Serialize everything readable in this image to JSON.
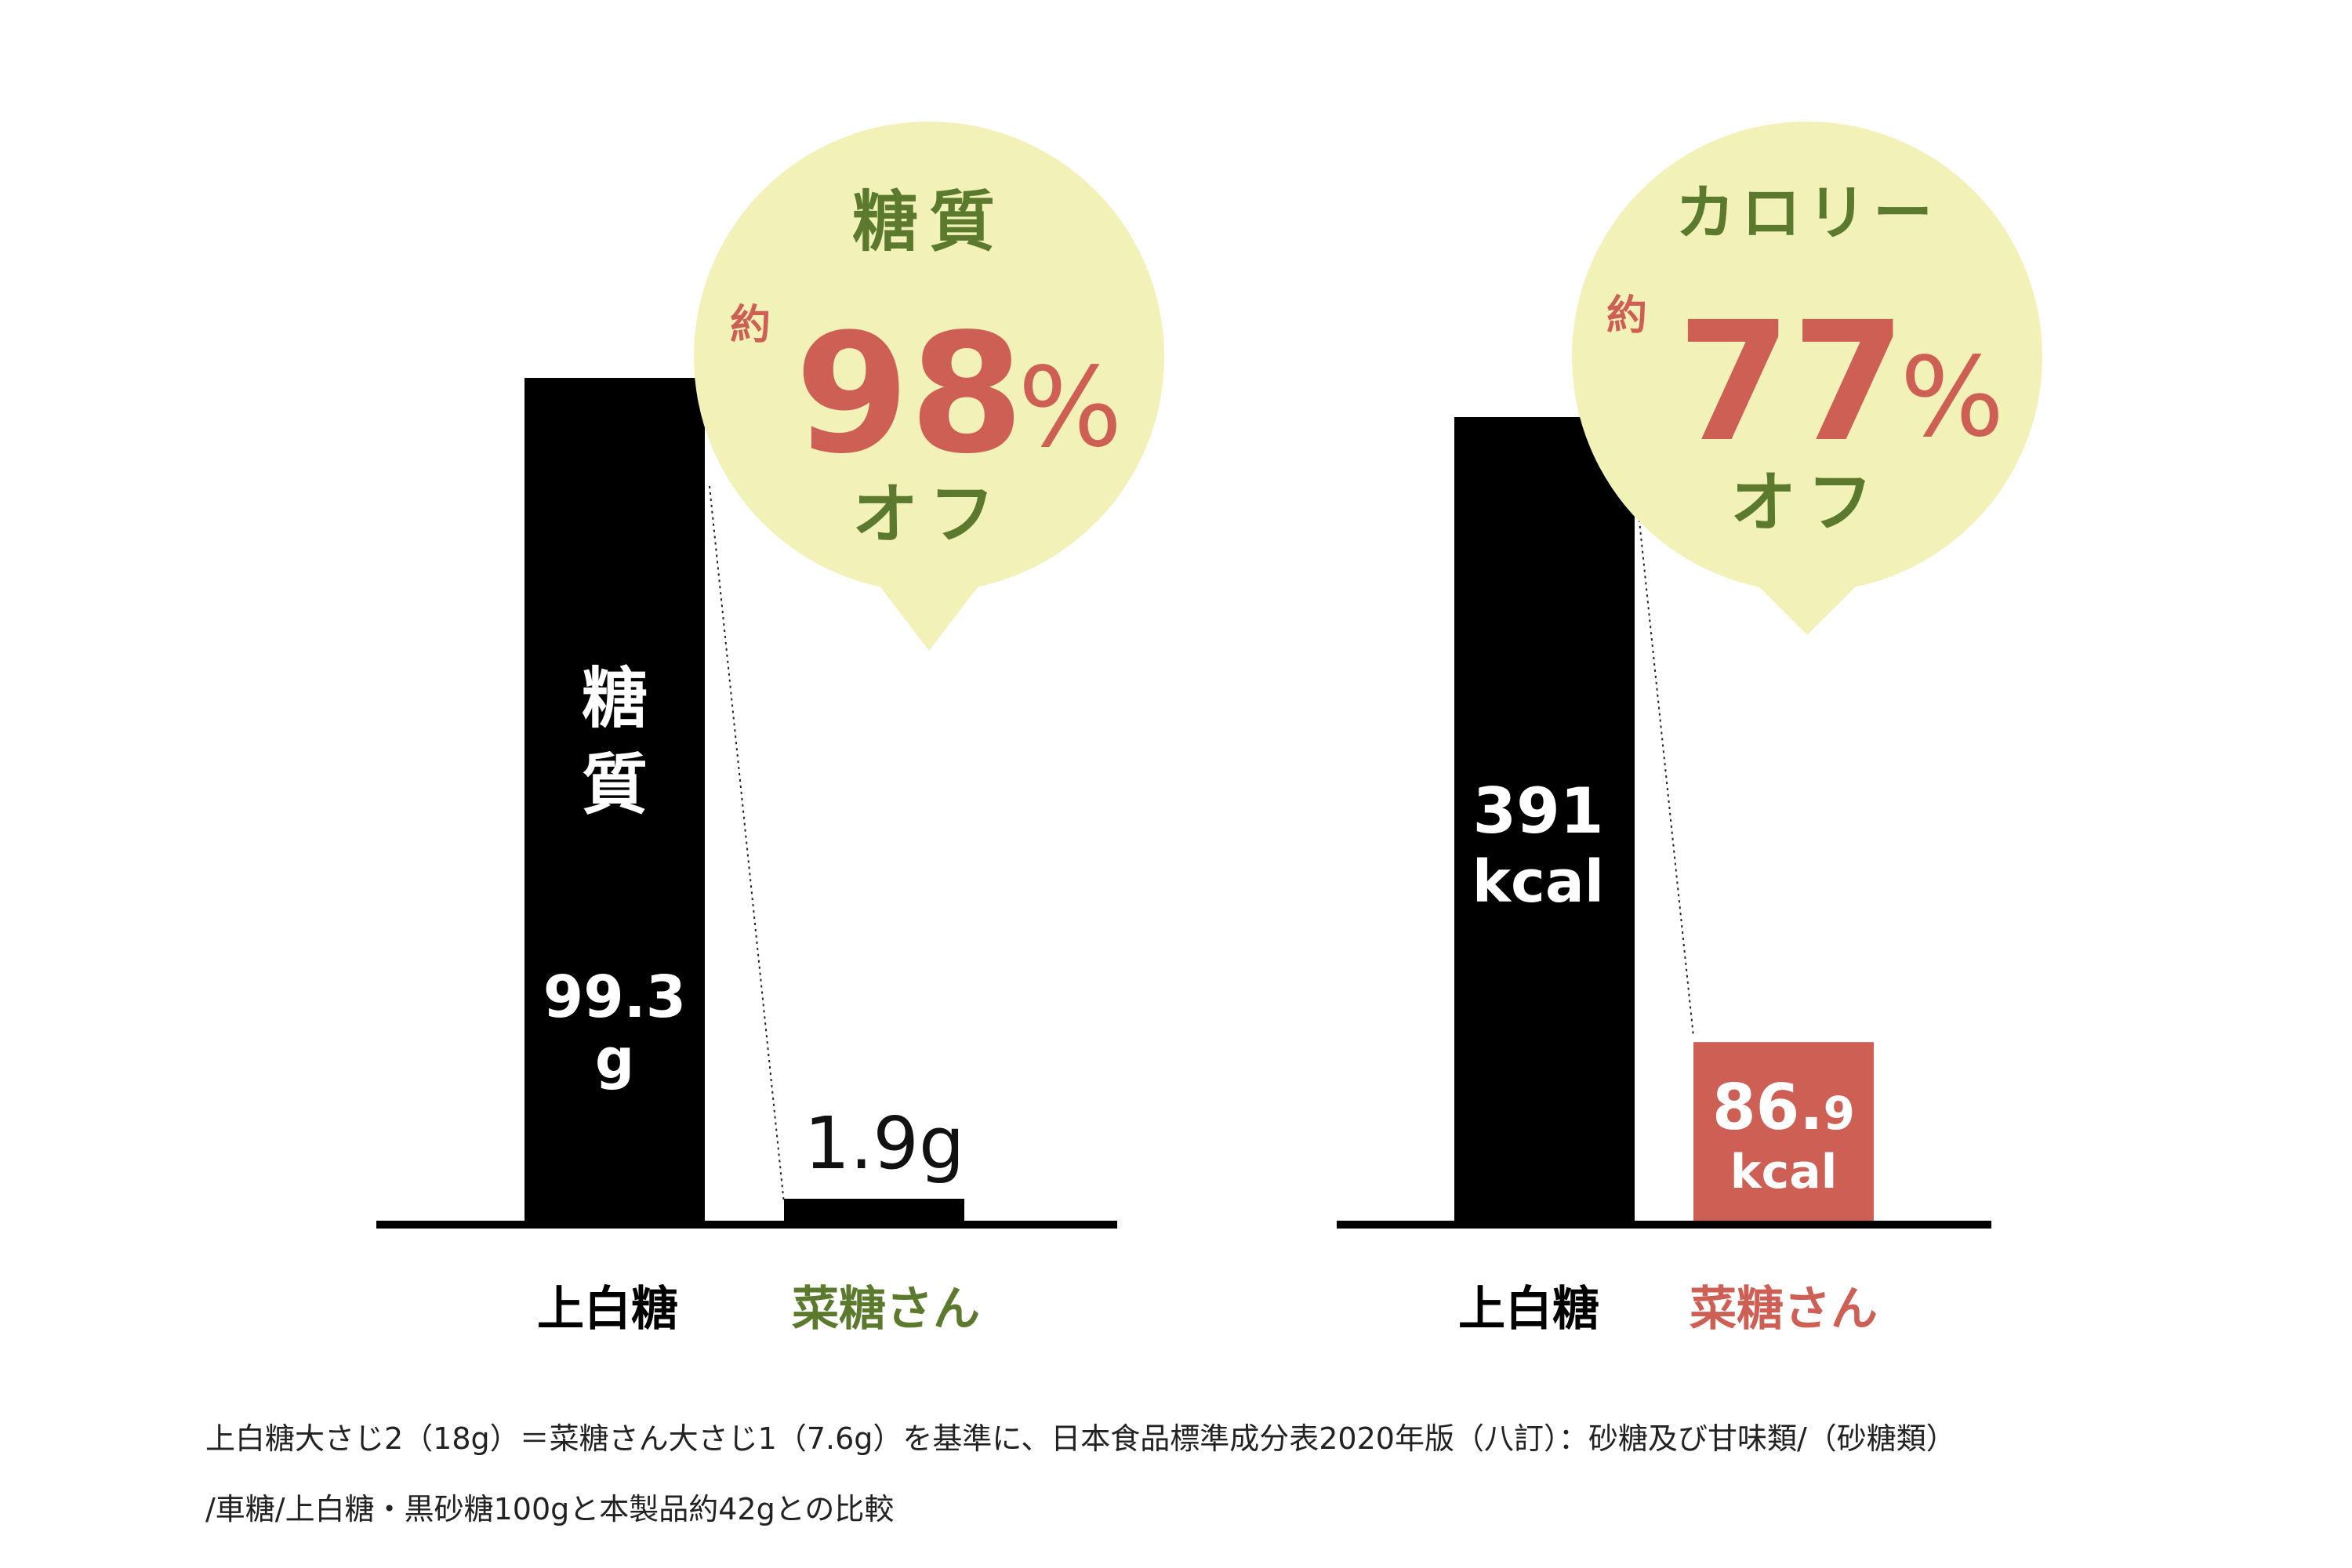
{
  "colors": {
    "bar_dark": "#000000",
    "bar_accent": "#cd5f55",
    "bubble_fill": "#f1f1b8",
    "bubble_title": "#5b7a2d",
    "bubble_percent": "#cd5f55",
    "label_green": "#5b7a2d",
    "label_red": "#cd5f55",
    "text_light": "#ffffff"
  },
  "chart_data": [
    {
      "type": "bar",
      "categories": [
        "上白糖",
        "菜糖さん"
      ],
      "values": [
        99.3,
        1.9
      ],
      "unit": "g",
      "bar_labels": [
        {
          "title": [
            "糖",
            "質"
          ],
          "value": "99.3",
          "unit": "g"
        },
        {
          "value": "1.9g"
        }
      ],
      "category_colors": [
        "#000000",
        "#5b7a2d"
      ],
      "bar_colors": [
        "#000000",
        "#000000"
      ],
      "callout": {
        "title": "糖質",
        "prefix": "約",
        "number": "98",
        "percent": "%",
        "suffix": "オフ"
      }
    },
    {
      "type": "bar",
      "categories": [
        "上白糖",
        "菜糖さん"
      ],
      "values": [
        391,
        86.9
      ],
      "unit": "kcal",
      "bar_labels": [
        {
          "value": "391",
          "unit": "kcal"
        },
        {
          "value_main": "86.",
          "value_decimal": "9",
          "unit": "kcal"
        }
      ],
      "category_colors": [
        "#000000",
        "#cd5f55"
      ],
      "bar_colors": [
        "#000000",
        "#cd5f55"
      ],
      "callout": {
        "title": "カロリー",
        "prefix": "約",
        "number": "77",
        "percent": "%",
        "suffix": "オフ"
      }
    }
  ],
  "footnote": [
    "上白糖大さじ2（18g）＝菜糖さん大さじ1（7.6g）を基準に、日本食品標準成分表2020年版（八訂）：砂糖及び甘味類/（砂糖類）",
    "/車糖/上白糖・黒砂糖100gと本製品約42gとの比較"
  ]
}
